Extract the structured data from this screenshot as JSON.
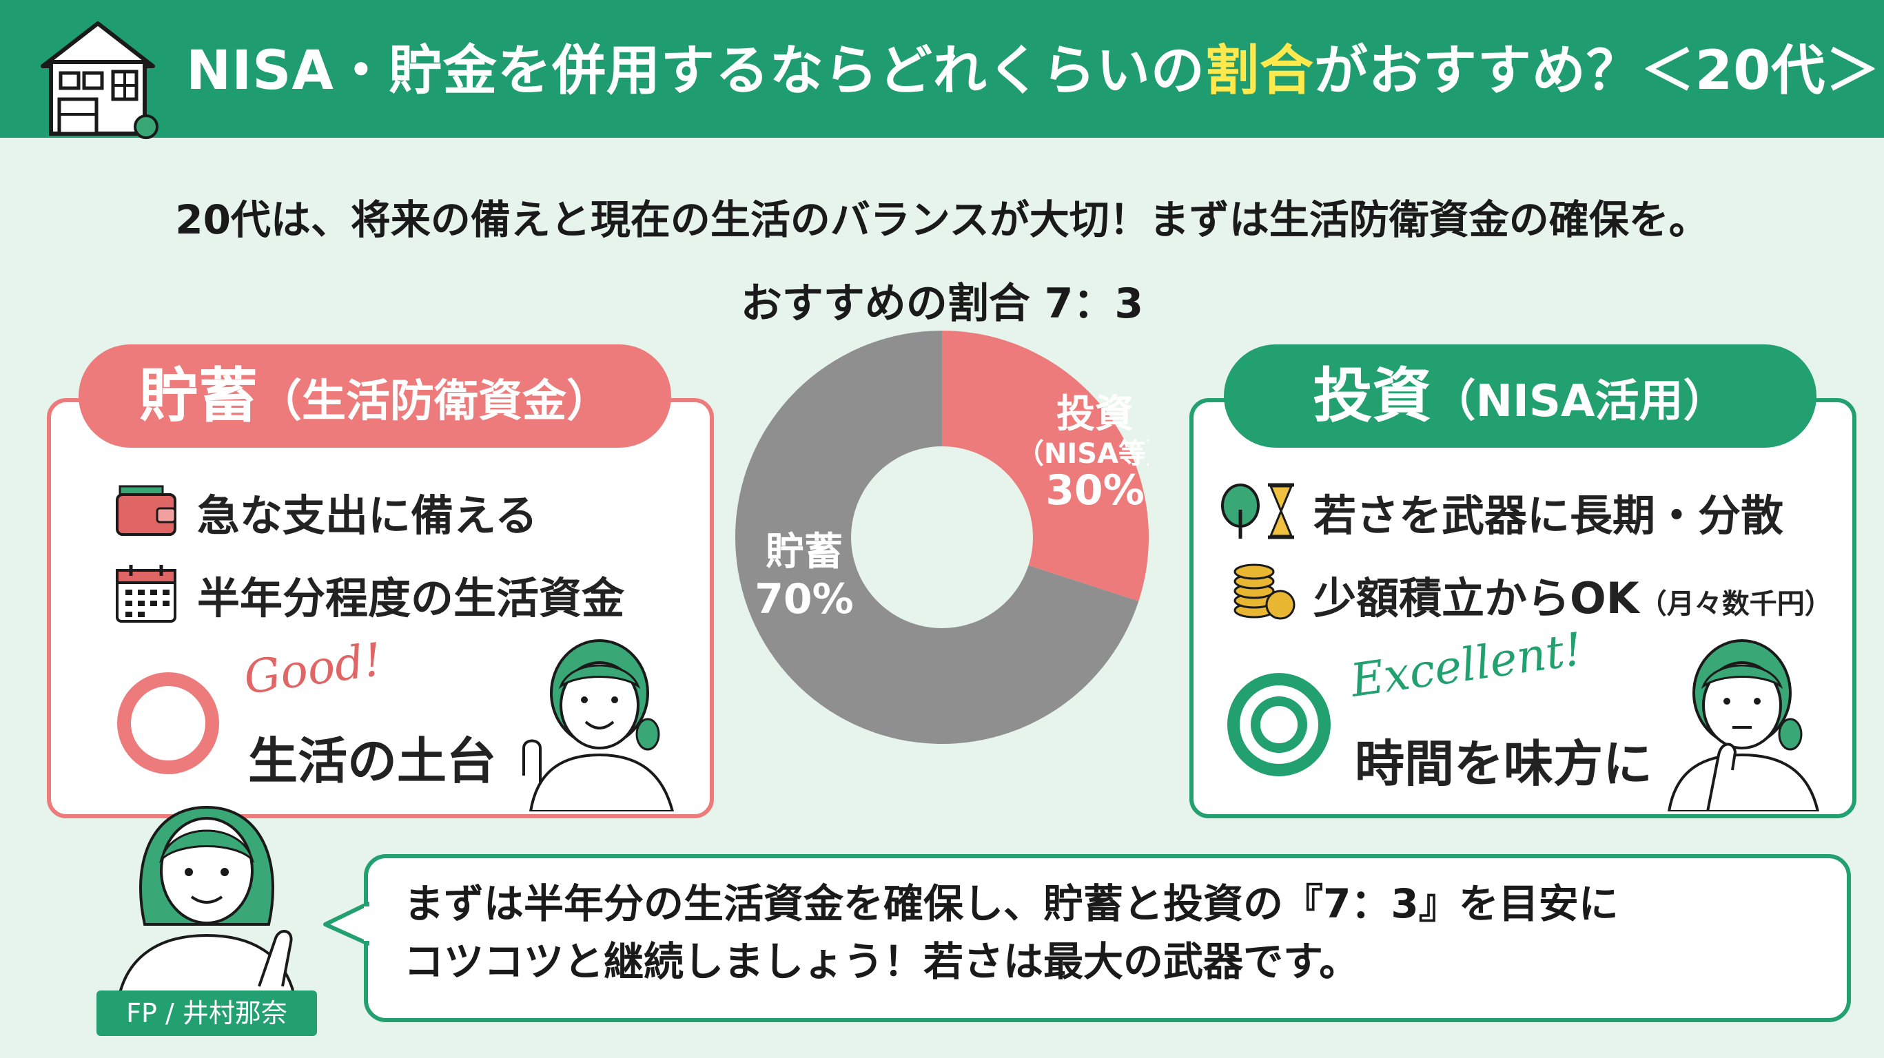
{
  "header": {
    "title_part1": "NISA・貯金を併用するならどれくらいの",
    "title_highlight": "割合",
    "title_part2": "がおすすめ？＜20代＞"
  },
  "subtitle": "20代は、将来の備えと現在の生活のバランスが大切！まずは生活防衛資金の確保を。",
  "ratio_title": "おすすめの割合 7：3",
  "chart_data": {
    "type": "pie",
    "categories": [
      "投資（NISA等）",
      "貯蓄"
    ],
    "values": [
      30,
      70
    ],
    "colors": [
      "#ee7b7b",
      "#8f8f8f"
    ],
    "labels": {
      "invest_name": "投資",
      "invest_sub": "（NISA等）",
      "invest_pct": "30%",
      "savings_name": "貯蓄",
      "savings_pct": "70%"
    }
  },
  "savings_card": {
    "title": "貯蓄",
    "title_sub": "（生活防衛資金）",
    "item1": "急な支出に備える",
    "item1_icon": "wallet-icon",
    "item2": "半年分程度の生活資金",
    "item2_icon": "calendar-icon",
    "badge_script": "Good!",
    "badge_label": "生活の土台",
    "badge_icon": "circle-icon",
    "accent": "#ee7b7b"
  },
  "invest_card": {
    "title": "投資",
    "title_sub": "（NISA活用）",
    "item1": "若さを武器に長期・分散",
    "item1_icon": "tree-hourglass-icon",
    "item2": "少額積立からOK",
    "item2_small": "（月々数千円）",
    "item2_icon": "coins-icon",
    "badge_script": "Excellent!",
    "badge_label": "時間を味方に",
    "badge_icon": "double-circle-icon",
    "accent": "#23a070"
  },
  "advisor": {
    "speech_line1": "まずは半年分の生活資金を確保し、貯蓄と投資の『7：3』を目安に",
    "speech_line2": "コツコツと継続しましょう！若さは最大の武器です。",
    "name": "FP / 井村那奈"
  }
}
